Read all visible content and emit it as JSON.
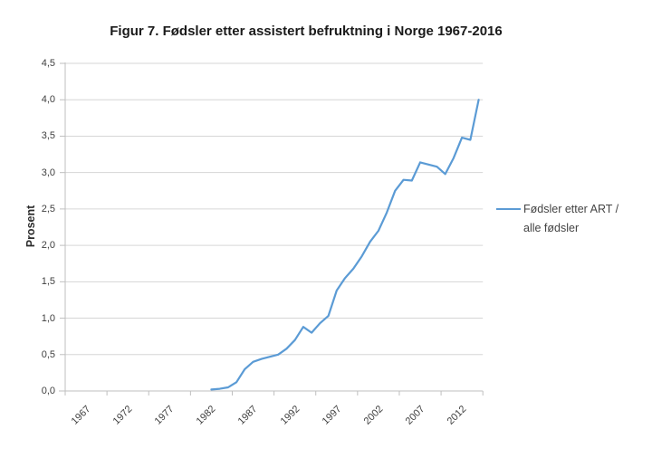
{
  "chart_data": {
    "type": "line",
    "title": "Figur 7. Fødsler etter assistert befruktning i Norge 1967-2016",
    "xlabel": "",
    "ylabel": "Prosent",
    "ylim": [
      0,
      4.5
    ],
    "y_tick_step": 0.5,
    "y_tick_labels": [
      "0,0",
      "0,5",
      "1,0",
      "1,5",
      "2,0",
      "2,5",
      "3,0",
      "3,5",
      "4,0",
      "4,5"
    ],
    "x_category_range": [
      1967,
      2016
    ],
    "x_tick_interval": 5,
    "x_tick_labels": [
      "1967",
      "1972",
      "1977",
      "1982",
      "1987",
      "1992",
      "1997",
      "2002",
      "2007",
      "2012"
    ],
    "grid": true,
    "legend_position": "right",
    "series": [
      {
        "name": "Fødsler etter ART / alle fødsler",
        "color": "#5B9BD5",
        "points": [
          [
            1984,
            0.02
          ],
          [
            1985,
            0.03
          ],
          [
            1986,
            0.05
          ],
          [
            1987,
            0.12
          ],
          [
            1988,
            0.3
          ],
          [
            1989,
            0.4
          ],
          [
            1990,
            0.44
          ],
          [
            1991,
            0.47
          ],
          [
            1992,
            0.5
          ],
          [
            1993,
            0.58
          ],
          [
            1994,
            0.7
          ],
          [
            1995,
            0.88
          ],
          [
            1996,
            0.8
          ],
          [
            1997,
            0.93
          ],
          [
            1998,
            1.03
          ],
          [
            1999,
            1.38
          ],
          [
            2000,
            1.55
          ],
          [
            2001,
            1.68
          ],
          [
            2002,
            1.85
          ],
          [
            2003,
            2.05
          ],
          [
            2004,
            2.2
          ],
          [
            2005,
            2.45
          ],
          [
            2006,
            2.75
          ],
          [
            2007,
            2.9
          ],
          [
            2008,
            2.89
          ],
          [
            2009,
            3.14
          ],
          [
            2010,
            3.11
          ],
          [
            2011,
            3.08
          ],
          [
            2012,
            2.98
          ],
          [
            2013,
            3.2
          ],
          [
            2014,
            3.48
          ],
          [
            2015,
            3.45
          ],
          [
            2016,
            4.0
          ]
        ]
      }
    ]
  },
  "legend": {
    "line1": "Fødsler etter ART /",
    "line2": "alle fødsler"
  },
  "colors": {
    "series_line": "#5B9BD5",
    "gridline": "#D6D6D6",
    "axis": "#BFBFBF",
    "tick_label": "#3F3F3F",
    "title": "#1A1A1A"
  }
}
